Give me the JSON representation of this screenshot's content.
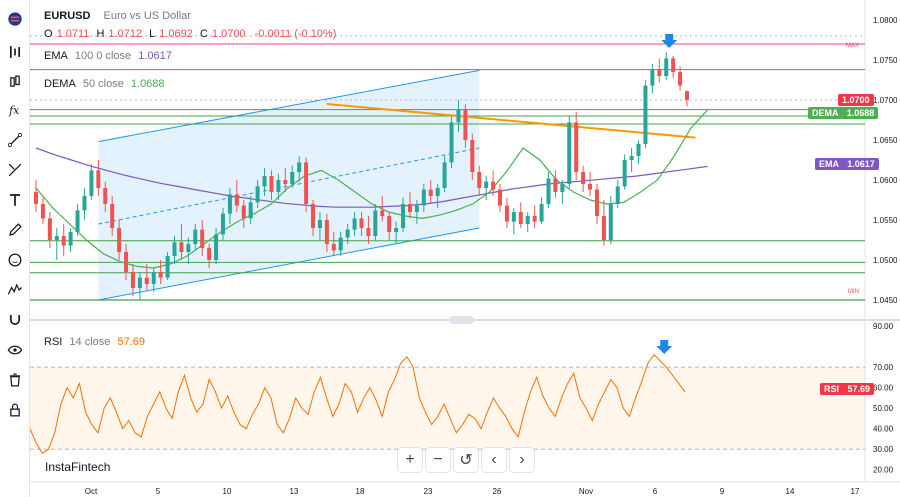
{
  "symbol": {
    "ticker": "EURUSD",
    "name": "Euro vs US Dollar"
  },
  "ohlc": {
    "o_label": "O",
    "o": "1.0711",
    "h_label": "H",
    "h": "1.0712",
    "l_label": "L",
    "l": "1.0692",
    "c_label": "C",
    "c": "1.0700",
    "change": "-0.0011 (-0.10%)"
  },
  "indicators": {
    "ema": {
      "name": "EMA",
      "params": "100 0 close",
      "value": "1.0617",
      "tag": "EMA",
      "tag_value": "1.0617"
    },
    "dema": {
      "name": "DEMA",
      "params": "50 close",
      "value": "1.0688",
      "tag": "DEMA",
      "tag_value": "1.0688"
    },
    "rsi": {
      "name": "RSI",
      "params": "14 close",
      "value": "57.69",
      "tag": "RSI",
      "tag_value": "57.69"
    }
  },
  "price_tag": "1.0700",
  "labels": {
    "max": "MAX",
    "min": "MIN"
  },
  "brand": "InstaFintech",
  "toolbar": [
    "flag-icon",
    "bar-chart-icon",
    "candle-icon",
    "fx-icon",
    "node-icon",
    "cross-draw-icon",
    "text-icon",
    "brush-icon",
    "emoji-icon",
    "pattern-icon",
    "magnet-icon",
    "eye-icon",
    "trash-icon",
    "lock-icon"
  ],
  "zoom": [
    "+",
    "−",
    "↺",
    "‹",
    "›"
  ],
  "colors": {
    "up": "#26a69a",
    "down": "#ef5350",
    "ema": "#7e57c2",
    "dema": "#4caf50",
    "rsi": "#ff6d00",
    "channel": "#2196f3",
    "trendline": "#ff9800",
    "resistance": "#ec407a",
    "support": "#43a047"
  },
  "chart_data": [
    {
      "type": "candlestick",
      "title": "EURUSD",
      "x_ticks": [
        "Oct",
        "5",
        "10",
        "13",
        "18",
        "23",
        "26",
        "Nov",
        "6",
        "9",
        "14",
        "17"
      ],
      "y_ticks": [
        "1.0800",
        "1.0750",
        "1.0700",
        "1.0650",
        "1.0600",
        "1.0550",
        "1.0500",
        "1.0450"
      ],
      "ylim": [
        1.0425,
        1.0815
      ],
      "candles": [
        [
          1.0585,
          1.06,
          1.056,
          1.057
        ],
        [
          1.057,
          1.0578,
          1.0545,
          1.0552
        ],
        [
          1.0552,
          1.056,
          1.0515,
          1.0525
        ],
        [
          1.0525,
          1.054,
          1.05,
          1.053
        ],
        [
          1.053,
          1.0545,
          1.0505,
          1.0518
        ],
        [
          1.0518,
          1.054,
          1.051,
          1.0535
        ],
        [
          1.0535,
          1.057,
          1.053,
          1.0562
        ],
        [
          1.0562,
          1.059,
          1.055,
          1.058
        ],
        [
          1.058,
          1.062,
          1.0575,
          1.0612
        ],
        [
          1.0612,
          1.0625,
          1.058,
          1.059
        ],
        [
          1.059,
          1.0598,
          1.056,
          1.057
        ],
        [
          1.057,
          1.058,
          1.053,
          1.054
        ],
        [
          1.054,
          1.055,
          1.05,
          1.051
        ],
        [
          1.051,
          1.052,
          1.0475,
          1.0485
        ],
        [
          1.0485,
          1.0495,
          1.0455,
          1.0465
        ],
        [
          1.0465,
          1.0485,
          1.045,
          1.0478
        ],
        [
          1.0478,
          1.0495,
          1.0462,
          1.047
        ],
        [
          1.047,
          1.049,
          1.046,
          1.0485
        ],
        [
          1.0485,
          1.05,
          1.047,
          1.0478
        ],
        [
          1.0478,
          1.051,
          1.0475,
          1.0505
        ],
        [
          1.0505,
          1.053,
          1.0495,
          1.0522
        ],
        [
          1.0522,
          1.0545,
          1.05,
          1.051
        ],
        [
          1.051,
          1.0528,
          1.0495,
          1.052
        ],
        [
          1.052,
          1.0545,
          1.0512,
          1.0538
        ],
        [
          1.0538,
          1.055,
          1.0505,
          1.0515
        ],
        [
          1.0515,
          1.052,
          1.049,
          1.05
        ],
        [
          1.05,
          1.054,
          1.0495,
          1.0532
        ],
        [
          1.0532,
          1.0565,
          1.0525,
          1.0558
        ],
        [
          1.0558,
          1.059,
          1.0545,
          1.0582
        ],
        [
          1.0582,
          1.06,
          1.056,
          1.0568
        ],
        [
          1.0568,
          1.0575,
          1.054,
          1.0552
        ],
        [
          1.0552,
          1.058,
          1.0545,
          1.0572
        ],
        [
          1.0572,
          1.06,
          1.0565,
          1.0592
        ],
        [
          1.0592,
          1.0615,
          1.058,
          1.0605
        ],
        [
          1.0605,
          1.0612,
          1.0575,
          1.0585
        ],
        [
          1.0585,
          1.0608,
          1.0575,
          1.06
        ],
        [
          1.06,
          1.0615,
          1.0585,
          1.0595
        ],
        [
          1.0595,
          1.0618,
          1.059,
          1.061
        ],
        [
          1.061,
          1.063,
          1.0598,
          1.0622
        ],
        [
          1.0622,
          1.0628,
          1.056,
          1.057
        ],
        [
          1.057,
          1.0575,
          1.053,
          1.054
        ],
        [
          1.054,
          1.056,
          1.0525,
          1.055
        ],
        [
          1.055,
          1.0558,
          1.051,
          1.052
        ],
        [
          1.052,
          1.0535,
          1.0505,
          1.0512
        ],
        [
          1.0512,
          1.0535,
          1.0505,
          1.0528
        ],
        [
          1.0528,
          1.0545,
          1.052,
          1.0538
        ],
        [
          1.0538,
          1.056,
          1.053,
          1.0552
        ],
        [
          1.0552,
          1.056,
          1.053,
          1.054
        ],
        [
          1.054,
          1.0555,
          1.052,
          1.053
        ],
        [
          1.053,
          1.057,
          1.0525,
          1.0562
        ],
        [
          1.0562,
          1.058,
          1.0548,
          1.0555
        ],
        [
          1.0555,
          1.056,
          1.0525,
          1.0535
        ],
        [
          1.0535,
          1.0548,
          1.052,
          1.054
        ],
        [
          1.054,
          1.0578,
          1.0535,
          1.057
        ],
        [
          1.057,
          1.0585,
          1.0552,
          1.056
        ],
        [
          1.056,
          1.0575,
          1.0545,
          1.0568
        ],
        [
          1.0568,
          1.0595,
          1.056,
          1.0588
        ],
        [
          1.0588,
          1.06,
          1.057,
          1.058
        ],
        [
          1.058,
          1.0595,
          1.0565,
          1.059
        ],
        [
          1.059,
          1.063,
          1.0585,
          1.0622
        ],
        [
          1.0622,
          1.068,
          1.0615,
          1.0672
        ],
        [
          1.0672,
          1.07,
          1.066,
          1.0688
        ],
        [
          1.0688,
          1.0695,
          1.064,
          1.065
        ],
        [
          1.065,
          1.0658,
          1.06,
          1.061
        ],
        [
          1.061,
          1.0618,
          1.058,
          1.059
        ],
        [
          1.059,
          1.0605,
          1.0575,
          1.0598
        ],
        [
          1.0598,
          1.0612,
          1.058,
          1.0588
        ],
        [
          1.0588,
          1.0595,
          1.056,
          1.0568
        ],
        [
          1.0568,
          1.0578,
          1.054,
          1.0548
        ],
        [
          1.0548,
          1.0565,
          1.0532,
          1.056
        ],
        [
          1.056,
          1.0572,
          1.054,
          1.0545
        ],
        [
          1.0545,
          1.056,
          1.0535,
          1.0555
        ],
        [
          1.0555,
          1.0568,
          1.054,
          1.0548
        ],
        [
          1.0548,
          1.0578,
          1.0545,
          1.057
        ],
        [
          1.057,
          1.061,
          1.0565,
          1.0602
        ],
        [
          1.0602,
          1.0612,
          1.0578,
          1.0585
        ],
        [
          1.0585,
          1.06,
          1.057,
          1.0595
        ],
        [
          1.0595,
          1.068,
          1.059,
          1.0672
        ],
        [
          1.0672,
          1.0685,
          1.06,
          1.061
        ],
        [
          1.061,
          1.0618,
          1.0585,
          1.0595
        ],
        [
          1.0595,
          1.061,
          1.058,
          1.0588
        ],
        [
          1.0588,
          1.0595,
          1.0545,
          1.0555
        ],
        [
          1.0555,
          1.0575,
          1.0518,
          1.0525
        ],
        [
          1.0525,
          1.058,
          1.052,
          1.057
        ],
        [
          1.057,
          1.06,
          1.0565,
          1.0592
        ],
        [
          1.0592,
          1.0632,
          1.0588,
          1.0625
        ],
        [
          1.0625,
          1.064,
          1.061,
          1.063
        ],
        [
          1.063,
          1.065,
          1.062,
          1.0645
        ],
        [
          1.0645,
          1.0725,
          1.064,
          1.0718
        ],
        [
          1.0718,
          1.0745,
          1.0708,
          1.0738
        ],
        [
          1.0738,
          1.0752,
          1.0722,
          1.073
        ],
        [
          1.073,
          1.076,
          1.0725,
          1.0752
        ],
        [
          1.0752,
          1.0755,
          1.0728,
          1.0735
        ],
        [
          1.0735,
          1.0742,
          1.0712,
          1.0718
        ],
        [
          1.0711,
          1.0712,
          1.0692,
          1.07
        ]
      ],
      "ema_100": [
        1.064,
        1.0632,
        1.0625,
        1.0618,
        1.0612,
        1.0606,
        1.0601,
        1.0596,
        1.0592,
        1.0588,
        1.0584,
        1.058,
        1.0577,
        1.0574,
        1.0571,
        1.0569,
        1.0567,
        1.0566,
        1.0566,
        1.0566,
        1.0567,
        1.0568,
        1.057,
        1.0573,
        1.0577,
        1.0581,
        1.0585,
        1.0589,
        1.0592,
        1.0595,
        1.0597,
        1.0599,
        1.0601,
        1.0603,
        1.0605,
        1.0608,
        1.0611,
        1.0614,
        1.0617
      ],
      "dema_50": [
        1.059,
        1.0565,
        1.0545,
        1.0525,
        1.0508,
        1.0498,
        1.0492,
        1.049,
        1.0495,
        1.0505,
        1.052,
        1.0535,
        1.0548,
        1.0558,
        1.057,
        1.059,
        1.0605,
        1.0612,
        1.06,
        1.0585,
        1.057,
        1.056,
        1.0555,
        1.0552,
        1.0556,
        1.0562,
        1.057,
        1.0585,
        1.061,
        1.064,
        1.0625,
        1.06,
        1.0585,
        1.0575,
        1.057,
        1.0572,
        1.0585,
        1.06,
        1.063,
        1.0665,
        1.0688
      ],
      "levels": {
        "max": 1.077,
        "resistance": 1.0738,
        "price": 1.07,
        "dema_band": [
          1.0688,
          1.068,
          1.067
        ],
        "s1": 1.0524,
        "s2": 1.0497,
        "s3": 1.0484,
        "min": 1.045
      },
      "channel": {
        "upper": [
          [
            0,
            1.0648
          ],
          [
            64,
            1.0737
          ]
        ],
        "lower": [
          [
            0,
            1.045
          ],
          [
            64,
            1.054
          ]
        ],
        "mid": [
          [
            0,
            1.0545
          ],
          [
            64,
            1.064
          ]
        ]
      },
      "trendline": [
        [
          42,
          1.0695
        ],
        [
          88,
          1.0653
        ]
      ]
    },
    {
      "type": "line",
      "title": "RSI",
      "ylim": [
        15,
        92
      ],
      "y_ticks": [
        "90.00",
        "70.00",
        "60.00",
        "50.00",
        "40.00",
        "30.00",
        "20.00"
      ],
      "bands": [
        30,
        70
      ],
      "values": [
        40,
        33,
        28,
        30,
        38,
        52,
        60,
        55,
        62,
        48,
        42,
        38,
        50,
        55,
        48,
        40,
        44,
        38,
        36,
        46,
        52,
        58,
        50,
        45,
        58,
        66,
        55,
        48,
        52,
        64,
        58,
        50,
        56,
        48,
        42,
        40,
        47,
        52,
        60,
        55,
        42,
        38,
        45,
        55,
        50,
        47,
        58,
        65,
        55,
        46,
        52,
        62,
        58,
        48,
        55,
        60,
        54,
        46,
        58,
        64,
        72,
        75,
        70,
        55,
        48,
        42,
        46,
        52,
        45,
        38,
        42,
        47,
        45,
        40,
        48,
        55,
        50,
        46,
        40,
        36,
        48,
        58,
        65,
        56,
        50,
        46,
        55,
        62,
        67,
        55,
        50,
        44,
        52,
        58,
        64,
        60,
        50,
        46,
        55,
        63,
        72,
        76,
        73,
        70,
        66,
        62,
        58
      ]
    }
  ]
}
